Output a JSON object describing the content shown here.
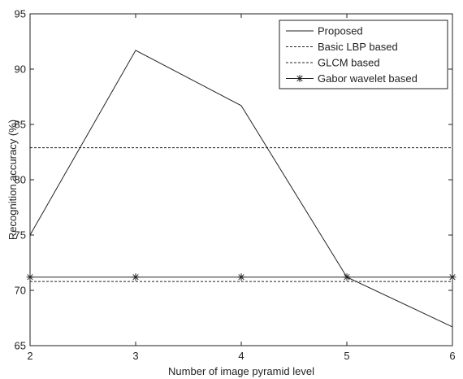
{
  "chart_data": {
    "type": "line",
    "title": "",
    "xlabel": "Number of image pyramid level",
    "ylabel": "Recognition accuracy (%)",
    "xlim": [
      2,
      6
    ],
    "ylim": [
      65,
      95
    ],
    "x_ticks": [
      2,
      3,
      4,
      5,
      6
    ],
    "y_ticks": [
      65,
      70,
      75,
      80,
      85,
      90,
      95
    ],
    "x_tick_labels": [
      "2",
      "3",
      "4",
      "5",
      "6"
    ],
    "y_tick_labels": [
      "65",
      "70",
      "75",
      "80",
      "85",
      "90",
      "95"
    ],
    "grid": false,
    "legend_position": "top-right",
    "x": [
      2,
      3,
      4,
      5,
      6
    ],
    "series": [
      {
        "name": "Proposed",
        "values": [
          75.0,
          91.7,
          86.7,
          71.2,
          66.7
        ],
        "style": "solid",
        "marker": "none",
        "color": "#222222"
      },
      {
        "name": "Basic LBP based",
        "values": [
          82.9,
          82.9,
          82.9,
          82.9,
          82.9
        ],
        "style": "dashed",
        "marker": "none",
        "color": "#222222"
      },
      {
        "name": "GLCM based",
        "values": [
          70.8,
          70.8,
          70.8,
          70.8,
          70.8
        ],
        "style": "dashed",
        "marker": "none",
        "color": "#222222"
      },
      {
        "name": "Gabor wavelet based",
        "values": [
          71.2,
          71.2,
          71.2,
          71.2,
          71.2
        ],
        "style": "solid",
        "marker": "asterisk",
        "color": "#222222"
      }
    ]
  }
}
